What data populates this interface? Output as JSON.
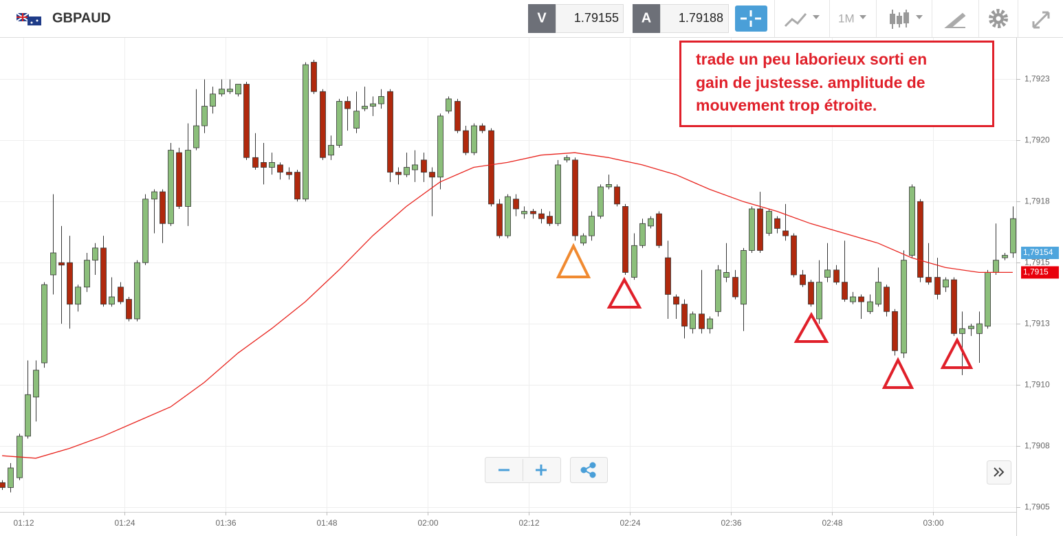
{
  "header": {
    "symbol": "GBPAUD",
    "bid_label": "V",
    "bid": 1.79155,
    "ask_label": "A",
    "ask": 1.79188,
    "timeframe": "1M"
  },
  "chart_data": {
    "type": "candlestick",
    "x": [
      "01:09",
      "01:10",
      "01:11",
      "01:12",
      "01:13",
      "01:14",
      "01:15",
      "01:16",
      "01:17",
      "01:18",
      "01:19",
      "01:20",
      "01:21",
      "01:22",
      "01:23",
      "01:24",
      "01:25",
      "01:26",
      "01:27",
      "01:28",
      "01:29",
      "01:30",
      "01:31",
      "01:32",
      "01:33",
      "01:34",
      "01:35",
      "01:36",
      "01:37",
      "01:38",
      "01:39",
      "01:40",
      "01:41",
      "01:42",
      "01:43",
      "01:44",
      "01:45",
      "01:46",
      "01:47",
      "01:48",
      "01:49",
      "01:50",
      "01:51",
      "01:52",
      "01:53",
      "01:54",
      "01:55",
      "01:56",
      "01:57",
      "01:58",
      "01:59",
      "02:00",
      "02:01",
      "02:02",
      "02:03",
      "02:04",
      "02:05",
      "02:06",
      "02:07",
      "02:08",
      "02:09",
      "02:10",
      "02:11",
      "02:12",
      "02:13",
      "02:14",
      "02:15",
      "02:16",
      "02:17",
      "02:18",
      "02:19",
      "02:20",
      "02:21",
      "02:22",
      "02:23",
      "02:24",
      "02:25",
      "02:26",
      "02:27",
      "02:28",
      "02:29",
      "02:30",
      "02:31",
      "02:32",
      "02:33",
      "02:34",
      "02:35",
      "02:36",
      "02:37",
      "02:38",
      "02:39",
      "02:40",
      "02:41",
      "02:42",
      "02:43",
      "02:44",
      "02:45",
      "02:46",
      "02:47",
      "02:48",
      "02:49",
      "02:50",
      "02:51",
      "02:52",
      "02:53",
      "02:54",
      "02:55",
      "02:56",
      "02:57",
      "02:58",
      "02:59",
      "03:00",
      "03:01",
      "03:02",
      "03:03",
      "03:04",
      "03:05",
      "03:06",
      "03:07",
      "03:08",
      "03:09"
    ],
    "open": [
      1.7906,
      1.79058,
      1.79062,
      1.79079,
      1.79095,
      1.79109,
      1.79145,
      1.7915,
      1.7915,
      1.79133,
      1.7914,
      1.79151,
      1.79156,
      1.79133,
      1.7914,
      1.79135,
      1.79127,
      1.7915,
      1.79176,
      1.79179,
      1.79166,
      1.79195,
      1.79173,
      1.79197,
      1.79206,
      1.79214,
      1.79219,
      1.7922,
      1.79219,
      1.79223,
      1.79193,
      1.79191,
      1.79189,
      1.7919,
      1.79187,
      1.79187,
      1.79176,
      1.79232,
      1.7922,
      1.79194,
      1.79198,
      1.79216,
      1.79205,
      1.79213,
      1.79214,
      1.79215,
      1.7922,
      1.79187,
      1.79186,
      1.79188,
      1.79192,
      1.79187,
      1.79185,
      1.79212,
      1.79216,
      1.79204,
      1.79195,
      1.79206,
      1.79204,
      1.79174,
      1.79161,
      1.79176,
      1.7917,
      1.79171,
      1.7917,
      1.79169,
      1.79166,
      1.79192,
      1.79192,
      1.79158,
      1.79161,
      1.79169,
      1.79181,
      1.79181,
      1.79173,
      1.79144,
      1.79157,
      1.79165,
      1.7917,
      1.79152,
      1.79136,
      1.79133,
      1.79123,
      1.79129,
      1.79123,
      1.7913,
      1.79144,
      1.79144,
      1.79133,
      1.79155,
      1.79172,
      1.79162,
      1.79168,
      1.79163,
      1.79161,
      1.79145,
      1.79142,
      1.79127,
      1.79144,
      1.79147,
      1.79142,
      1.79134,
      1.79136,
      1.7913,
      1.79133,
      1.7914,
      1.7913,
      1.79113,
      1.79153,
      1.79175,
      1.79144,
      1.79144,
      1.7914,
      1.79143,
      1.79121,
      1.79123,
      1.79121,
      1.79124,
      1.79146,
      1.79152,
      1.79154
    ],
    "high": [
      1.79061,
      1.79068,
      1.7908,
      1.7911,
      1.7911,
      1.79142,
      1.79178,
      1.79165,
      1.79161,
      1.79141,
      1.79154,
      1.79158,
      1.79161,
      1.79144,
      1.79142,
      1.79136,
      1.79151,
      1.79178,
      1.7918,
      1.7918,
      1.79199,
      1.79197,
      1.79207,
      1.79221,
      1.79225,
      1.79222,
      1.79225,
      1.79225,
      1.79223,
      1.79224,
      1.79203,
      1.79199,
      1.79195,
      1.79191,
      1.79189,
      1.79188,
      1.79232,
      1.79233,
      1.79221,
      1.79202,
      1.79217,
      1.79218,
      1.7922,
      1.79222,
      1.79218,
      1.79221,
      1.79221,
      1.79189,
      1.79195,
      1.79196,
      1.79195,
      1.79189,
      1.79211,
      1.79218,
      1.79217,
      1.79206,
      1.79207,
      1.79207,
      1.79205,
      1.79176,
      1.79178,
      1.79178,
      1.79173,
      1.79172,
      1.79172,
      1.79171,
      1.79192,
      1.79194,
      1.79193,
      1.79162,
      1.79171,
      1.79182,
      1.79186,
      1.79182,
      1.79174,
      1.79162,
      1.79168,
      1.79169,
      1.79171,
      1.79159,
      1.79137,
      1.79135,
      1.7913,
      1.79147,
      1.79128,
      1.79149,
      1.79158,
      1.79147,
      1.79156,
      1.79173,
      1.79179,
      1.79172,
      1.79169,
      1.79174,
      1.79162,
      1.79147,
      1.79143,
      1.79151,
      1.79158,
      1.79149,
      1.79159,
      1.79138,
      1.79137,
      1.79137,
      1.79148,
      1.79141,
      1.79131,
      1.79155,
      1.79182,
      1.79176,
      1.79158,
      1.79152,
      1.79144,
      1.79144,
      1.7913,
      1.79125,
      1.7913,
      1.79147,
      1.79166,
      1.79154,
      1.79173
    ],
    "low": [
      1.79057,
      1.79056,
      1.79061,
      1.79078,
      1.79085,
      1.79107,
      1.79137,
      1.79125,
      1.79123,
      1.7913,
      1.79138,
      1.79145,
      1.79132,
      1.79132,
      1.79133,
      1.79126,
      1.79126,
      1.79149,
      1.79162,
      1.79158,
      1.79165,
      1.79172,
      1.79165,
      1.79196,
      1.79203,
      1.79211,
      1.79218,
      1.79219,
      1.79218,
      1.79192,
      1.79188,
      1.79182,
      1.79186,
      1.79184,
      1.79184,
      1.79175,
      1.79175,
      1.79219,
      1.79192,
      1.79192,
      1.79197,
      1.79204,
      1.79203,
      1.79212,
      1.7921,
      1.79213,
      1.79183,
      1.79182,
      1.79185,
      1.79183,
      1.79183,
      1.79169,
      1.7918,
      1.79211,
      1.79203,
      1.79194,
      1.79194,
      1.79203,
      1.79173,
      1.7916,
      1.7916,
      1.79169,
      1.79168,
      1.79168,
      1.79166,
      1.79165,
      1.79165,
      1.79191,
      1.79159,
      1.79157,
      1.79159,
      1.79168,
      1.7918,
      1.79173,
      1.79145,
      1.79143,
      1.79156,
      1.79164,
      1.79156,
      1.79127,
      1.79127,
      1.79119,
      1.79121,
      1.79121,
      1.79121,
      1.79128,
      1.79142,
      1.79135,
      1.79122,
      1.79154,
      1.79154,
      1.79161,
      1.79162,
      1.79159,
      1.79144,
      1.7914,
      1.79132,
      1.79125,
      1.79142,
      1.79141,
      1.79134,
      1.79133,
      1.79127,
      1.79129,
      1.79132,
      1.79128,
      1.79112,
      1.79111,
      1.79152,
      1.79142,
      1.79141,
      1.79135,
      1.79138,
      1.7912,
      1.79104,
      1.7912,
      1.79109,
      1.79123,
      1.79145,
      1.79151,
      1.79152
    ],
    "close": [
      1.79058,
      1.79066,
      1.79079,
      1.79096,
      1.79106,
      1.79141,
      1.79154,
      1.79149,
      1.79133,
      1.7914,
      1.79151,
      1.79156,
      1.79133,
      1.79136,
      1.79134,
      1.79127,
      1.7915,
      1.79176,
      1.79179,
      1.79166,
      1.79196,
      1.79173,
      1.79196,
      1.79206,
      1.79214,
      1.79219,
      1.79221,
      1.79221,
      1.79223,
      1.79193,
      1.79189,
      1.79189,
      1.79191,
      1.79187,
      1.79186,
      1.79176,
      1.79231,
      1.7922,
      1.79193,
      1.79198,
      1.79216,
      1.79213,
      1.79212,
      1.79214,
      1.79215,
      1.79218,
      1.79187,
      1.79186,
      1.79189,
      1.7919,
      1.79187,
      1.79185,
      1.7921,
      1.79217,
      1.79204,
      1.79195,
      1.79206,
      1.79204,
      1.79174,
      1.79161,
      1.79177,
      1.79172,
      1.79171,
      1.7917,
      1.79168,
      1.79166,
      1.7919,
      1.79193,
      1.79161,
      1.79161,
      1.79169,
      1.79181,
      1.79182,
      1.79174,
      1.79146,
      1.79157,
      1.79166,
      1.79168,
      1.79157,
      1.79137,
      1.79133,
      1.79124,
      1.79129,
      1.79123,
      1.79127,
      1.79147,
      1.79146,
      1.79136,
      1.79155,
      1.79172,
      1.79155,
      1.79171,
      1.79164,
      1.79161,
      1.79145,
      1.79141,
      1.79133,
      1.79142,
      1.79147,
      1.79142,
      1.79135,
      1.79136,
      1.79134,
      1.79134,
      1.79142,
      1.7913,
      1.79114,
      1.79151,
      1.79181,
      1.79144,
      1.79142,
      1.79137,
      1.79143,
      1.79121,
      1.79123,
      1.79124,
      1.79125,
      1.79146,
      1.79151,
      1.79153,
      1.79168
    ],
    "up_color": "#8cbf7b",
    "down_color": "#b0290d",
    "ma": {
      "color": "#e8231d",
      "x": [
        "01:09",
        "01:13",
        "01:17",
        "01:21",
        "01:25",
        "01:29",
        "01:33",
        "01:37",
        "01:41",
        "01:45",
        "01:49",
        "01:53",
        "01:57",
        "02:01",
        "02:05",
        "02:09",
        "02:13",
        "02:17",
        "02:21",
        "02:25",
        "02:29",
        "02:33",
        "02:37",
        "02:41",
        "02:45",
        "02:49",
        "02:53",
        "02:57",
        "03:01",
        "03:05",
        "03:09"
      ],
      "values": [
        1.79071,
        1.7907,
        1.79074,
        1.79079,
        1.79085,
        1.79091,
        1.79101,
        1.79113,
        1.79123,
        1.79134,
        1.79147,
        1.79161,
        1.79173,
        1.79183,
        1.79189,
        1.79191,
        1.79194,
        1.79195,
        1.79193,
        1.7919,
        1.79186,
        1.7918,
        1.79175,
        1.79171,
        1.79166,
        1.79162,
        1.79158,
        1.79152,
        1.79148,
        1.79146,
        1.79146
      ]
    },
    "xlim": [
      "01:09",
      "03:10"
    ],
    "xticks": [
      "01:12",
      "01:24",
      "01:36",
      "01:48",
      "02:00",
      "02:12",
      "02:24",
      "02:36",
      "02:48",
      "03:00"
    ],
    "ylim": [
      1.79048,
      1.79242
    ],
    "yticks": [
      {
        "value": 1.79225,
        "label": "1,7923"
      },
      {
        "value": 1.792,
        "label": "1,7920"
      },
      {
        "value": 1.79175,
        "label": "1,7918"
      },
      {
        "value": 1.7915,
        "label": "1,7915"
      },
      {
        "value": 1.79125,
        "label": "1,7913"
      },
      {
        "value": 1.791,
        "label": "1,7910"
      },
      {
        "value": 1.79075,
        "label": "1,7908"
      },
      {
        "value": 1.7905,
        "label": "1,7905"
      }
    ],
    "grid": true,
    "price_markers": [
      {
        "value": 1.79154,
        "label": "1,79154",
        "color": "#4ea5dd"
      },
      {
        "value": 1.79146,
        "label": "1,7915",
        "color": "#e8000b"
      }
    ],
    "annotation": [
      "trade un peu laborieux sorti en",
      "gain de justesse. amplitude de",
      "mouvement trop étroite."
    ]
  }
}
